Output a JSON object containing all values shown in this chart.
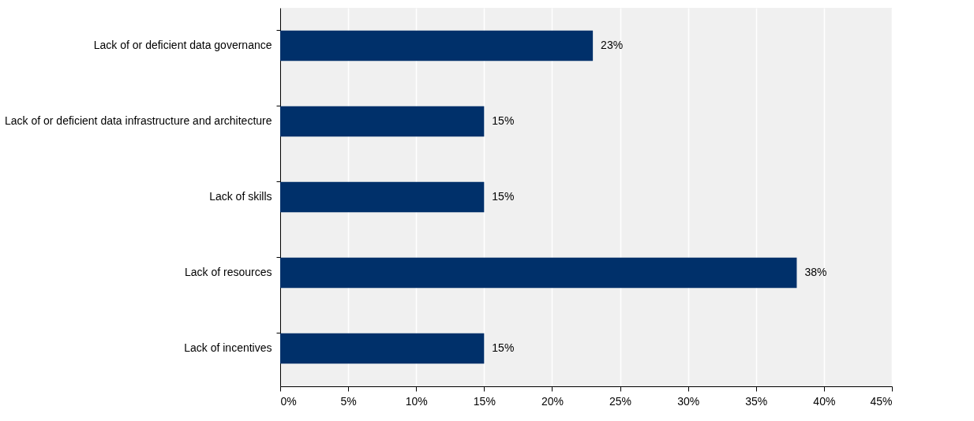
{
  "chart_data": {
    "type": "bar",
    "orientation": "horizontal",
    "categories": [
      "Lack of or deficient data governance",
      "Lack of or deficient data infrastructure and architecture",
      "Lack of skills",
      "Lack of resources",
      "Lack of incentives"
    ],
    "values": [
      23,
      15,
      15,
      38,
      15
    ],
    "value_labels": [
      "23%",
      "15%",
      "15%",
      "38%",
      "15%"
    ],
    "color": "#00306a",
    "xlim": [
      0,
      45
    ],
    "xticks": [
      {
        "value": 0,
        "label": "0%"
      },
      {
        "value": 5,
        "label": "5%"
      },
      {
        "value": 10,
        "label": "10%"
      },
      {
        "value": 15,
        "label": "15%"
      },
      {
        "value": 20,
        "label": "20%"
      },
      {
        "value": 25,
        "label": "25%"
      },
      {
        "value": 30,
        "label": "30%"
      },
      {
        "value": 35,
        "label": "35%"
      },
      {
        "value": 40,
        "label": "40%"
      },
      {
        "value": 45,
        "label": "45%"
      }
    ],
    "grid": "x"
  }
}
